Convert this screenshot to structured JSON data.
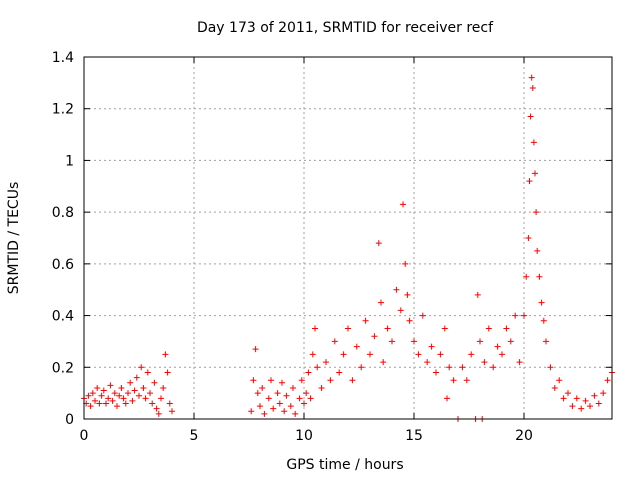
{
  "chart_data": {
    "type": "scatter",
    "title": "Day 173 of 2011, SRMTID for receiver recf",
    "xlabel": "GPS time / hours",
    "ylabel": "SRMTID / TECUs",
    "xlim": [
      0,
      24
    ],
    "ylim": [
      0,
      1.4
    ],
    "x_ticks": [
      0,
      5,
      10,
      15,
      20
    ],
    "x_tick_labels": [
      "0",
      "5",
      "10",
      "15",
      "20"
    ],
    "y_ticks": [
      0,
      0.2,
      0.4,
      0.6,
      0.8,
      1,
      1.2,
      1.4
    ],
    "y_tick_labels": [
      "0",
      "0.2",
      "0.4",
      "0.6",
      "0.8",
      "1",
      "1.2",
      "1.4"
    ],
    "grid": true,
    "marker": "plus",
    "color": "#ff0000",
    "series": [
      {
        "name": "SRMTID",
        "points": [
          [
            0.0,
            0.08
          ],
          [
            0.1,
            0.06
          ],
          [
            0.2,
            0.09
          ],
          [
            0.3,
            0.05
          ],
          [
            0.4,
            0.1
          ],
          [
            0.5,
            0.07
          ],
          [
            0.6,
            0.12
          ],
          [
            0.7,
            0.06
          ],
          [
            0.8,
            0.09
          ],
          [
            0.9,
            0.11
          ],
          [
            1.0,
            0.06
          ],
          [
            1.1,
            0.08
          ],
          [
            1.2,
            0.13
          ],
          [
            1.3,
            0.07
          ],
          [
            1.4,
            0.1
          ],
          [
            1.5,
            0.05
          ],
          [
            1.6,
            0.09
          ],
          [
            1.7,
            0.12
          ],
          [
            1.8,
            0.08
          ],
          [
            1.9,
            0.06
          ],
          [
            2.0,
            0.1
          ],
          [
            2.1,
            0.14
          ],
          [
            2.2,
            0.07
          ],
          [
            2.3,
            0.11
          ],
          [
            2.4,
            0.16
          ],
          [
            2.5,
            0.09
          ],
          [
            2.6,
            0.2
          ],
          [
            2.7,
            0.12
          ],
          [
            2.8,
            0.08
          ],
          [
            2.9,
            0.18
          ],
          [
            3.0,
            0.1
          ],
          [
            3.1,
            0.06
          ],
          [
            3.2,
            0.14
          ],
          [
            3.3,
            0.04
          ],
          [
            3.4,
            0.02
          ],
          [
            3.5,
            0.08
          ],
          [
            3.6,
            0.12
          ],
          [
            3.7,
            0.25
          ],
          [
            3.8,
            0.18
          ],
          [
            3.9,
            0.06
          ],
          [
            4.0,
            0.03
          ],
          [
            7.6,
            0.03
          ],
          [
            7.7,
            0.15
          ],
          [
            7.8,
            0.27
          ],
          [
            7.9,
            0.1
          ],
          [
            8.0,
            0.05
          ],
          [
            8.1,
            0.12
          ],
          [
            8.2,
            0.02
          ],
          [
            8.4,
            0.08
          ],
          [
            8.5,
            0.15
          ],
          [
            8.6,
            0.04
          ],
          [
            8.8,
            0.1
          ],
          [
            8.9,
            0.06
          ],
          [
            9.0,
            0.14
          ],
          [
            9.1,
            0.03
          ],
          [
            9.2,
            0.09
          ],
          [
            9.4,
            0.05
          ],
          [
            9.5,
            0.12
          ],
          [
            9.6,
            0.02
          ],
          [
            9.8,
            0.08
          ],
          [
            9.9,
            0.15
          ],
          [
            10.0,
            0.06
          ],
          [
            10.1,
            0.1
          ],
          [
            10.2,
            0.18
          ],
          [
            10.3,
            0.08
          ],
          [
            10.4,
            0.25
          ],
          [
            10.5,
            0.35
          ],
          [
            10.6,
            0.2
          ],
          [
            10.8,
            0.12
          ],
          [
            11.0,
            0.22
          ],
          [
            11.2,
            0.15
          ],
          [
            11.4,
            0.3
          ],
          [
            11.6,
            0.18
          ],
          [
            11.8,
            0.25
          ],
          [
            12.0,
            0.35
          ],
          [
            12.2,
            0.15
          ],
          [
            12.4,
            0.28
          ],
          [
            12.6,
            0.2
          ],
          [
            12.8,
            0.38
          ],
          [
            13.0,
            0.25
          ],
          [
            13.2,
            0.32
          ],
          [
            13.4,
            0.68
          ],
          [
            13.5,
            0.45
          ],
          [
            13.6,
            0.22
          ],
          [
            13.8,
            0.35
          ],
          [
            14.0,
            0.3
          ],
          [
            14.2,
            0.5
          ],
          [
            14.4,
            0.42
          ],
          [
            14.5,
            0.83
          ],
          [
            14.6,
            0.6
          ],
          [
            14.7,
            0.48
          ],
          [
            14.8,
            0.38
          ],
          [
            15.0,
            0.3
          ],
          [
            15.2,
            0.25
          ],
          [
            15.4,
            0.4
          ],
          [
            15.6,
            0.22
          ],
          [
            15.8,
            0.28
          ],
          [
            16.0,
            0.18
          ],
          [
            16.2,
            0.25
          ],
          [
            16.4,
            0.35
          ],
          [
            16.5,
            0.08
          ],
          [
            16.6,
            0.2
          ],
          [
            16.8,
            0.15
          ],
          [
            17.0,
            0.0
          ],
          [
            17.2,
            0.2
          ],
          [
            17.4,
            0.15
          ],
          [
            17.6,
            0.25
          ],
          [
            17.8,
            0.0
          ],
          [
            17.9,
            0.48
          ],
          [
            18.0,
            0.3
          ],
          [
            18.1,
            0.0
          ],
          [
            18.2,
            0.22
          ],
          [
            18.4,
            0.35
          ],
          [
            18.6,
            0.2
          ],
          [
            18.8,
            0.28
          ],
          [
            19.0,
            0.25
          ],
          [
            19.2,
            0.35
          ],
          [
            19.4,
            0.3
          ],
          [
            19.6,
            0.4
          ],
          [
            19.8,
            0.22
          ],
          [
            20.0,
            0.4
          ],
          [
            20.1,
            0.55
          ],
          [
            20.2,
            0.7
          ],
          [
            20.25,
            0.92
          ],
          [
            20.3,
            1.17
          ],
          [
            20.35,
            1.32
          ],
          [
            20.4,
            1.28
          ],
          [
            20.45,
            1.07
          ],
          [
            20.5,
            0.95
          ],
          [
            20.55,
            0.8
          ],
          [
            20.6,
            0.65
          ],
          [
            20.7,
            0.55
          ],
          [
            20.8,
            0.45
          ],
          [
            20.9,
            0.38
          ],
          [
            21.0,
            0.3
          ],
          [
            21.2,
            0.2
          ],
          [
            21.4,
            0.12
          ],
          [
            21.6,
            0.15
          ],
          [
            21.8,
            0.08
          ],
          [
            22.0,
            0.1
          ],
          [
            22.2,
            0.05
          ],
          [
            22.4,
            0.08
          ],
          [
            22.6,
            0.04
          ],
          [
            22.8,
            0.07
          ],
          [
            23.0,
            0.05
          ],
          [
            23.2,
            0.09
          ],
          [
            23.4,
            0.06
          ],
          [
            23.6,
            0.1
          ],
          [
            23.8,
            0.15
          ],
          [
            24.0,
            0.18
          ]
        ]
      }
    ]
  }
}
